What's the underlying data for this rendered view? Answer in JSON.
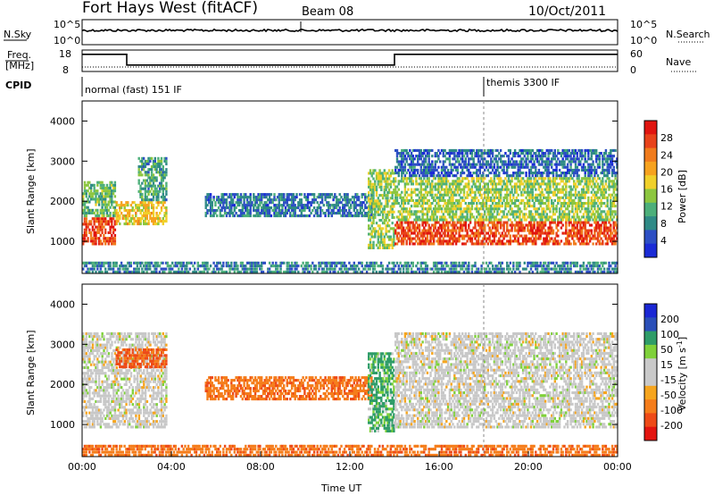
{
  "header": {
    "site": "Fort Hays West (fitACF)",
    "beam": "Beam 08",
    "date": "10/Oct/2011"
  },
  "strip_panels": {
    "nsky_label": "N.Sky",
    "nsearch_label": "N.Search",
    "noise_ticks": [
      "10^5",
      "10^0"
    ],
    "freq_label_1": "Freq.",
    "freq_label_2": "[MHz]",
    "freq_ticks": [
      "18",
      "8"
    ],
    "nave_label": "Nave",
    "nave_ticks": [
      "60",
      "0"
    ],
    "cpid_label": "CPID",
    "cpid_modes": [
      {
        "name": "normal (fast) 151 IF",
        "start": "00:00"
      },
      {
        "name": "themis 3300 IF",
        "start": "18:00"
      }
    ],
    "freq_series": [
      {
        "t": 0.0,
        "v": 16
      },
      {
        "t": 2.0,
        "v": 16
      },
      {
        "t": 2.0,
        "v": 11
      },
      {
        "t": 14.0,
        "v": 11
      },
      {
        "t": 14.0,
        "v": 16
      },
      {
        "t": 24.0,
        "v": 16
      }
    ]
  },
  "colors": {
    "power_scale": [
      "#1a2bd6",
      "#2d4fc4",
      "#2f8a86",
      "#4caf7a",
      "#8cc63f",
      "#f0d02a",
      "#f6a21e",
      "#f07b1c",
      "#e8421a",
      "#e0140f"
    ],
    "velocity_scale": [
      "#e3140f",
      "#ee4a17",
      "#f57d1b",
      "#f6a51e",
      "#c9c9c9",
      "#c9c9c9",
      "#7fd13a",
      "#2e9c68",
      "#2a4fb8",
      "#1a27d4"
    ],
    "ground_scatter": "#c8c8c8"
  },
  "chart_data": [
    {
      "type": "heatmap",
      "name": "power",
      "ylabel": "Slant Range [km]",
      "ylim": [
        200,
        4500
      ],
      "yticks": [
        "1000",
        "2000",
        "3000",
        "4000"
      ],
      "xlim": [
        "00:00",
        "24:00"
      ],
      "colorbar": {
        "label": "Power [dB]",
        "ticks": [
          "4",
          "8",
          "12",
          "16",
          "20",
          "24",
          "28"
        ]
      },
      "bands": [
        {
          "t0": 0.0,
          "t1": 1.5,
          "r0": 900,
          "r1": 1600,
          "power": 26
        },
        {
          "t0": 0.0,
          "t1": 1.5,
          "r0": 1600,
          "r1": 2500,
          "power": 12
        },
        {
          "t0": 1.5,
          "t1": 3.8,
          "r0": 1400,
          "r1": 2000,
          "power": 18
        },
        {
          "t0": 2.5,
          "t1": 3.8,
          "r0": 2000,
          "r1": 3100,
          "power": 10
        },
        {
          "t0": 5.5,
          "t1": 13.0,
          "r0": 1600,
          "r1": 2200,
          "power": 7
        },
        {
          "t0": 12.8,
          "t1": 14.0,
          "r0": 800,
          "r1": 2800,
          "power": 14
        },
        {
          "t0": 14.0,
          "t1": 24.0,
          "r0": 900,
          "r1": 1500,
          "power": 26
        },
        {
          "t0": 14.0,
          "t1": 24.0,
          "r0": 1500,
          "r1": 2600,
          "power": 14
        },
        {
          "t0": 14.0,
          "t1": 24.0,
          "r0": 2600,
          "r1": 3300,
          "power": 6
        },
        {
          "t0": 0.0,
          "t1": 24.0,
          "r0": 200,
          "r1": 500,
          "power": 8
        }
      ]
    },
    {
      "type": "heatmap",
      "name": "velocity",
      "ylabel": "Slant Range [km]",
      "xlabel": "Time UT",
      "ylim": [
        200,
        4500
      ],
      "yticks": [
        "1000",
        "2000",
        "3000",
        "4000"
      ],
      "xticks": [
        "00:00",
        "04:00",
        "08:00",
        "12:00",
        "16:00",
        "20:00",
        "00:00"
      ],
      "xlim": [
        "00:00",
        "24:00"
      ],
      "colorbar": {
        "label": "Velocity [m s^-1]",
        "ticks": [
          "200",
          "100",
          "50",
          "15",
          "-15",
          "-50",
          "-100",
          "-200"
        ]
      },
      "bands": [
        {
          "t0": 0.0,
          "t1": 3.8,
          "r0": 900,
          "r1": 3300,
          "velocity": 0
        },
        {
          "t0": 1.5,
          "t1": 3.8,
          "r0": 2400,
          "r1": 2900,
          "velocity": -80
        },
        {
          "t0": 5.5,
          "t1": 13.0,
          "r0": 1600,
          "r1": 2200,
          "velocity": -60
        },
        {
          "t0": 12.8,
          "t1": 14.0,
          "r0": 800,
          "r1": 2800,
          "velocity": 40
        },
        {
          "t0": 14.0,
          "t1": 24.0,
          "r0": 900,
          "r1": 1900,
          "velocity": 0
        },
        {
          "t0": 14.0,
          "t1": 24.0,
          "r0": 1900,
          "r1": 3300,
          "velocity": 0
        },
        {
          "t0": 0.0,
          "t1": 24.0,
          "r0": 200,
          "r1": 500,
          "velocity": -60
        }
      ]
    }
  ]
}
